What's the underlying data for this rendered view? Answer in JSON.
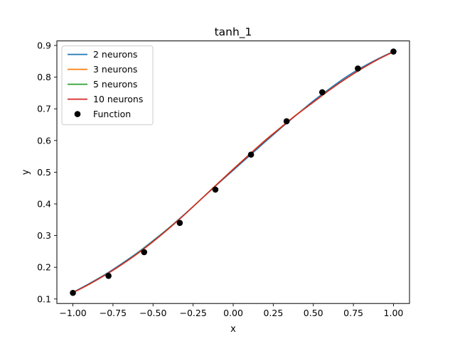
{
  "chart_data": {
    "type": "line",
    "title": "tanh_1",
    "xlabel": "x",
    "ylabel": "y",
    "xlim": [
      -1.1,
      1.1
    ],
    "ylim": [
      0.0857,
      0.9143
    ],
    "xticks": [
      -1.0,
      -0.75,
      -0.5,
      -0.25,
      0.0,
      0.25,
      0.5,
      0.75,
      1.0
    ],
    "xtick_labels": [
      "−1.00",
      "−0.75",
      "−0.50",
      "−0.25",
      "0.00",
      "0.25",
      "0.50",
      "0.75",
      "1.00"
    ],
    "yticks": [
      0.1,
      0.2,
      0.3,
      0.4,
      0.5,
      0.6,
      0.7,
      0.8,
      0.9
    ],
    "ytick_labels": [
      "0.1",
      "0.2",
      "0.3",
      "0.4",
      "0.5",
      "0.6",
      "0.7",
      "0.8",
      "0.9"
    ],
    "grid": false,
    "legend_position": "top-left",
    "series": [
      {
        "name": "2 neurons",
        "color": "#1f77b4",
        "x": [
          -1.0,
          -0.9,
          -0.8,
          -0.7,
          -0.6,
          -0.5,
          -0.4,
          -0.3,
          -0.2,
          -0.1,
          0.0,
          0.1,
          0.2,
          0.3,
          0.4,
          0.5,
          0.6,
          0.7,
          0.8,
          0.9,
          1.0
        ],
        "y": [
          0.121,
          0.148,
          0.177,
          0.21,
          0.245,
          0.284,
          0.325,
          0.369,
          0.415,
          0.461,
          0.506,
          0.551,
          0.596,
          0.64,
          0.683,
          0.725,
          0.763,
          0.799,
          0.83,
          0.857,
          0.881
        ]
      },
      {
        "name": "3 neurons",
        "color": "#ff7f0e",
        "x": [
          -1.0,
          -0.9,
          -0.8,
          -0.7,
          -0.6,
          -0.5,
          -0.4,
          -0.3,
          -0.2,
          -0.1,
          0.0,
          0.1,
          0.2,
          0.3,
          0.4,
          0.5,
          0.6,
          0.7,
          0.8,
          0.9,
          1.0
        ],
        "y": [
          0.12,
          0.146,
          0.175,
          0.207,
          0.242,
          0.281,
          0.323,
          0.368,
          0.415,
          0.463,
          0.51,
          0.556,
          0.601,
          0.643,
          0.684,
          0.721,
          0.759,
          0.794,
          0.826,
          0.855,
          0.88
        ]
      },
      {
        "name": "5 neurons",
        "color": "#2ca02c",
        "x": [
          -1.0,
          -0.9,
          -0.8,
          -0.7,
          -0.6,
          -0.5,
          -0.4,
          -0.3,
          -0.2,
          -0.1,
          0.0,
          0.1,
          0.2,
          0.3,
          0.4,
          0.5,
          0.6,
          0.7,
          0.8,
          0.9,
          1.0
        ],
        "y": [
          0.12,
          0.146,
          0.175,
          0.207,
          0.243,
          0.282,
          0.324,
          0.368,
          0.415,
          0.462,
          0.509,
          0.555,
          0.6,
          0.642,
          0.683,
          0.721,
          0.759,
          0.794,
          0.826,
          0.855,
          0.88
        ]
      },
      {
        "name": "10 neurons",
        "color": "#d62728",
        "x": [
          -1.0,
          -0.9,
          -0.8,
          -0.7,
          -0.6,
          -0.5,
          -0.4,
          -0.3,
          -0.2,
          -0.1,
          0.0,
          0.1,
          0.2,
          0.3,
          0.4,
          0.5,
          0.6,
          0.7,
          0.8,
          0.9,
          1.0
        ],
        "y": [
          0.12,
          0.146,
          0.175,
          0.207,
          0.242,
          0.281,
          0.323,
          0.368,
          0.415,
          0.462,
          0.509,
          0.555,
          0.6,
          0.642,
          0.683,
          0.721,
          0.759,
          0.794,
          0.826,
          0.855,
          0.88
        ]
      }
    ],
    "points": {
      "name": "Function",
      "color": "#000000",
      "x": [
        -1.0,
        -0.7778,
        -0.5556,
        -0.3333,
        -0.1111,
        0.1111,
        0.3333,
        0.5556,
        0.7778,
        1.0
      ],
      "y": [
        0.1192,
        0.1728,
        0.2477,
        0.3399,
        0.4451,
        0.5555,
        0.6608,
        0.7523,
        0.8272,
        0.8808
      ]
    }
  }
}
